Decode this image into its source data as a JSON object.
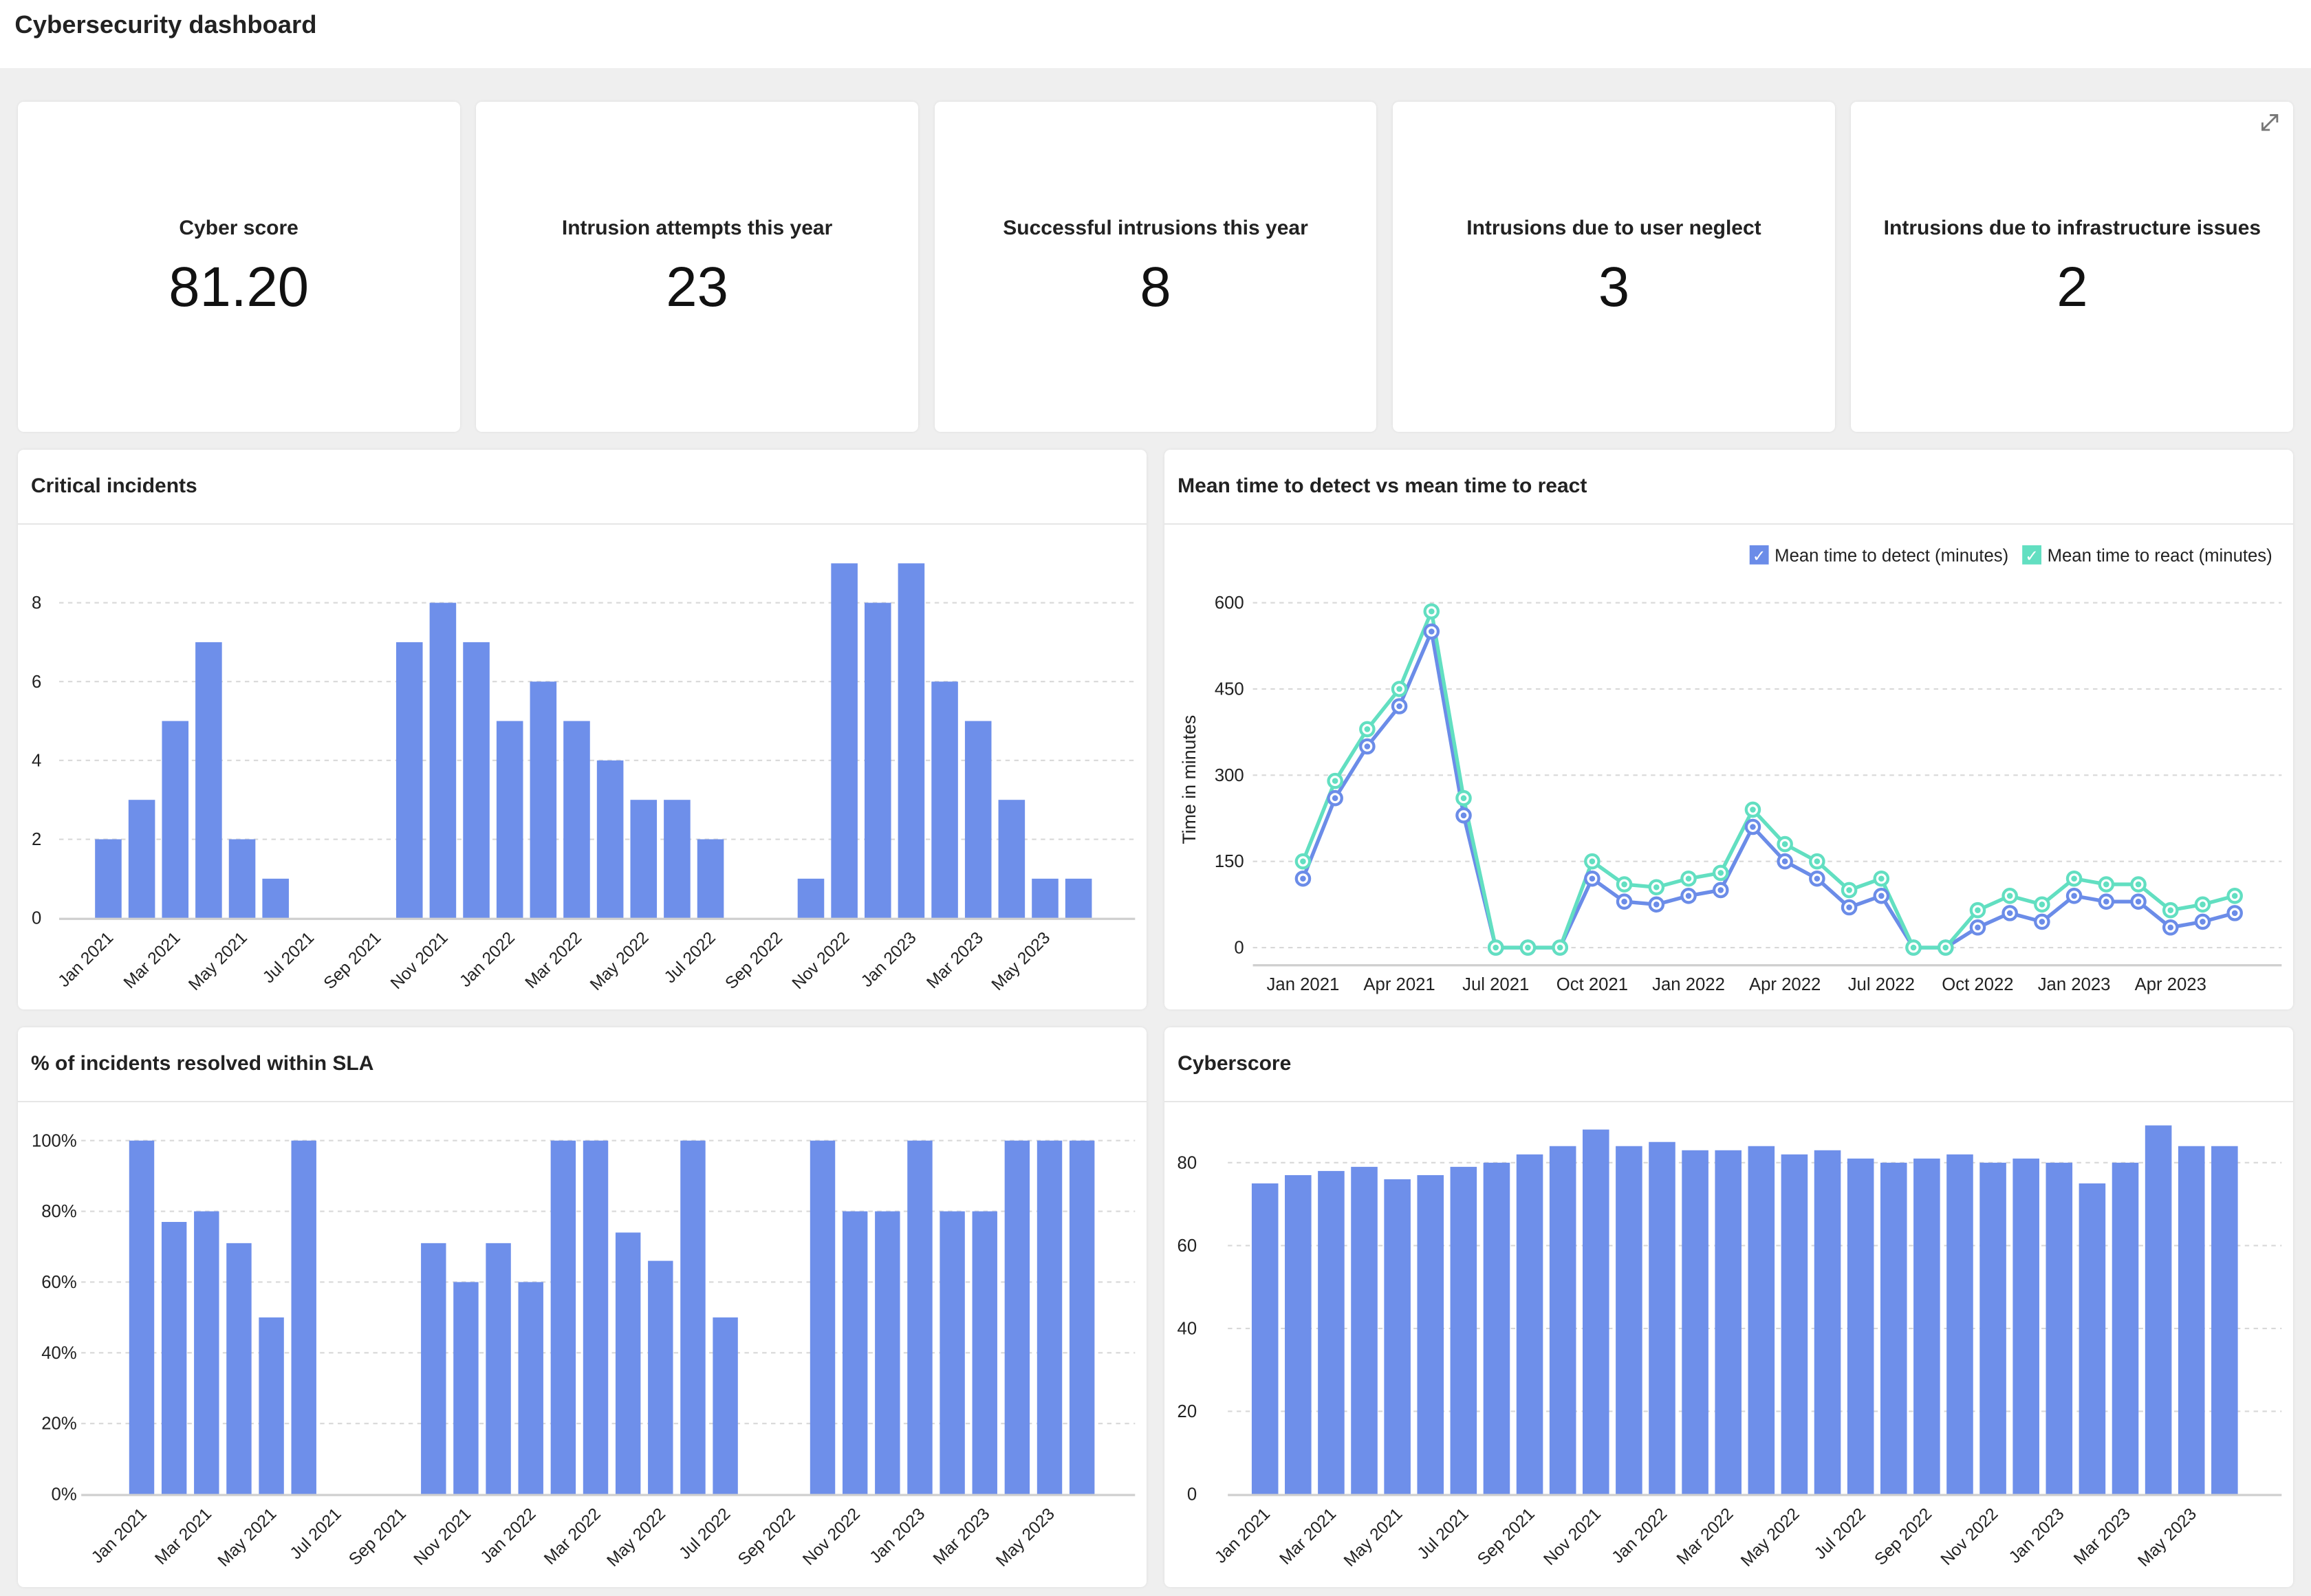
{
  "page": {
    "title": "Cybersecurity dashboard"
  },
  "kpis": [
    {
      "label": "Cyber score",
      "value": "81.20"
    },
    {
      "label": "Intrusion attempts this year",
      "value": "23"
    },
    {
      "label": "Successful intrusions this year",
      "value": "8"
    },
    {
      "label": "Intrusions due to user neglect",
      "value": "3"
    },
    {
      "label": "Intrusions due to infrastructure issues",
      "value": "2"
    }
  ],
  "colors": {
    "bar": "#6e8fea",
    "detect": "#6b8ce8",
    "react": "#62dfc1",
    "grid": "#d8d8d8",
    "axis": "#cfcfcf"
  },
  "chart_data": [
    {
      "id": "critical",
      "title": "Critical incidents",
      "type": "bar",
      "categories": [
        "Jan 2021",
        "Feb 2021",
        "Mar 2021",
        "Apr 2021",
        "May 2021",
        "Jun 2021",
        "Jul 2021",
        "Aug 2021",
        "Sep 2021",
        "Oct 2021",
        "Nov 2021",
        "Dec 2021",
        "Jan 2022",
        "Feb 2022",
        "Mar 2022",
        "Apr 2022",
        "May 2022",
        "Jun 2022",
        "Jul 2022",
        "Aug 2022",
        "Sep 2022",
        "Oct 2022",
        "Nov 2022",
        "Dec 2022",
        "Jan 2023",
        "Feb 2023",
        "Mar 2023",
        "Apr 2023",
        "May 2023",
        "Jun 2023"
      ],
      "values": [
        2,
        3,
        5,
        7,
        2,
        1,
        null,
        null,
        null,
        7,
        8,
        7,
        5,
        6,
        5,
        4,
        3,
        3,
        2,
        null,
        null,
        1,
        9,
        8,
        9,
        6,
        5,
        3,
        1,
        1
      ],
      "x_tick_labels": [
        "Jan 2021",
        "Mar 2021",
        "May 2021",
        "Jul 2021",
        "Sep 2021",
        "Nov 2021",
        "Jan 2022",
        "Mar 2022",
        "May 2022",
        "Jul 2022",
        "Sep 2022",
        "Nov 2022",
        "Jan 2023",
        "Mar 2023",
        "May 2023"
      ],
      "y_ticks": [
        0,
        2,
        4,
        6,
        8
      ],
      "y_tick_labels": [
        "0",
        "2",
        "4",
        "6",
        "8"
      ],
      "ylim": [
        0,
        9
      ],
      "grid": true
    },
    {
      "id": "mttd",
      "title": "Mean time to detect vs mean time to react",
      "type": "line",
      "ylabel": "Time in minutes",
      "legend_position": "top-right",
      "series": [
        {
          "name": "Mean time to detect (minutes)",
          "values": [
            120,
            260,
            350,
            420,
            550,
            230,
            0,
            0,
            0,
            120,
            80,
            75,
            90,
            100,
            210,
            150,
            120,
            70,
            90,
            0,
            0,
            35,
            60,
            45,
            90,
            80,
            80,
            35,
            45,
            60
          ]
        },
        {
          "name": "Mean time to react (minutes)",
          "values": [
            150,
            290,
            380,
            450,
            585,
            260,
            0,
            0,
            0,
            150,
            110,
            105,
            120,
            130,
            240,
            180,
            150,
            100,
            120,
            0,
            0,
            65,
            90,
            75,
            120,
            110,
            110,
            65,
            75,
            90
          ]
        }
      ],
      "x_tick_labels": [
        "Jan 2021",
        "Apr 2021",
        "Jul 2021",
        "Oct 2021",
        "Jan 2022",
        "Apr 2022",
        "Jul 2022",
        "Oct 2022",
        "Jan 2023",
        "Apr 2023"
      ],
      "y_ticks": [
        0,
        150,
        300,
        450,
        600
      ],
      "y_tick_labels": [
        "0",
        "150",
        "300",
        "450",
        "600"
      ],
      "ylim": [
        0,
        600
      ],
      "legend_check": "✓",
      "grid": true
    },
    {
      "id": "sla",
      "title": "% of incidents resolved within SLA",
      "type": "bar",
      "values": [
        100,
        77,
        80,
        71,
        50,
        100,
        null,
        null,
        null,
        71,
        60,
        71,
        60,
        100,
        100,
        74,
        66,
        100,
        50,
        null,
        null,
        100,
        80,
        80,
        100,
        80,
        80,
        100,
        100,
        100
      ],
      "x_tick_labels": [
        "Jan 2021",
        "Mar 2021",
        "May 2021",
        "Jul 2021",
        "Sep 2021",
        "Nov 2021",
        "Jan 2022",
        "Mar 2022",
        "May 2022",
        "Jul 2022",
        "Sep 2022",
        "Nov 2022",
        "Jan 2023",
        "Mar 2023",
        "May 2023"
      ],
      "y_ticks": [
        0,
        20,
        40,
        60,
        80,
        100
      ],
      "y_tick_labels": [
        "0%",
        "20%",
        "40%",
        "60%",
        "80%",
        "100%"
      ],
      "ylim": [
        0,
        100
      ],
      "grid": true
    },
    {
      "id": "cyberscore",
      "title": "Cyberscore",
      "type": "bar",
      "values": [
        75,
        77,
        78,
        79,
        76,
        77,
        79,
        80,
        82,
        84,
        88,
        84,
        85,
        83,
        83,
        84,
        82,
        83,
        81,
        80,
        81,
        82,
        80,
        81,
        80,
        75,
        80,
        89,
        84,
        84
      ],
      "x_tick_labels": [
        "Jan 2021",
        "Mar 2021",
        "May 2021",
        "Jul 2021",
        "Sep 2021",
        "Nov 2021",
        "Jan 2022",
        "Mar 2022",
        "May 2022",
        "Jul 2022",
        "Sep 2022",
        "Nov 2022",
        "Jan 2023",
        "Mar 2023",
        "May 2023"
      ],
      "y_ticks": [
        0,
        20,
        40,
        60,
        80
      ],
      "y_tick_labels": [
        "0",
        "20",
        "40",
        "60",
        "80"
      ],
      "ylim": [
        0,
        90
      ],
      "grid": true
    }
  ]
}
